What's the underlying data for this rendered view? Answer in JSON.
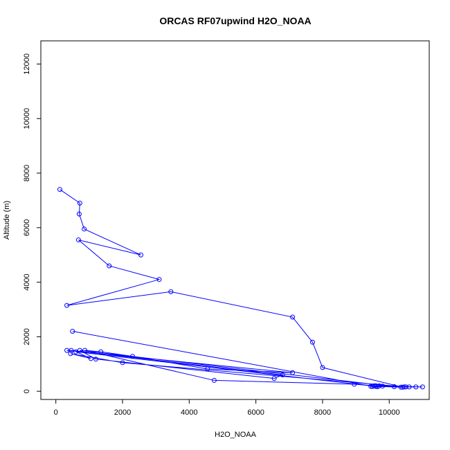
{
  "chart_data": {
    "type": "line",
    "title": "ORCAS RF07upwind H2O_NOAA",
    "xlabel": "H2O_NOAA",
    "ylabel": "Altitude (m)",
    "xlim": [
      -450,
      11200
    ],
    "ylim": [
      -300,
      12850
    ],
    "x_ticks": [
      0,
      2000,
      4000,
      6000,
      8000,
      10000
    ],
    "y_ticks": [
      0,
      2000,
      4000,
      6000,
      8000,
      10000,
      12000
    ],
    "grid": false,
    "series_color": "#0000ff",
    "series": [
      {
        "x": [
          120,
          720,
          700,
          850,
          2550,
          680,
          1600,
          3100,
          330,
          3450,
          7100,
          7700,
          8000,
          10400,
          10350,
          9600,
          10600,
          9700,
          10800,
          9500,
          9800,
          11000,
          9550,
          9450,
          10450,
          9600,
          8950,
          4750,
          870,
          1350,
          2300,
          4550,
          7100,
          330,
          460,
          6800,
          6550,
          1200,
          720,
          10150,
          10500,
          2000,
          440,
          1050,
          600,
          9650,
          9500,
          500
        ],
        "y": [
          7400,
          6900,
          6500,
          5950,
          5000,
          5550,
          4600,
          4100,
          3150,
          3650,
          2720,
          1800,
          870,
          150,
          150,
          180,
          160,
          200,
          160,
          180,
          190,
          160,
          200,
          180,
          160,
          200,
          260,
          400,
          1500,
          1450,
          1280,
          820,
          680,
          1500,
          1500,
          600,
          470,
          1180,
          1500,
          170,
          160,
          1050,
          1380,
          1200,
          1450,
          170,
          180,
          2200
        ]
      }
    ]
  }
}
